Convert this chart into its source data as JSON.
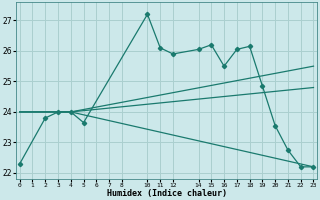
{
  "xlabel": "Humidex (Indice chaleur)",
  "background_color": "#cce8ea",
  "grid_color": "#aacfcf",
  "line_color": "#1a7a6e",
  "ylim": [
    21.8,
    27.6
  ],
  "xlim": [
    -0.3,
    23.3
  ],
  "yticks": [
    22,
    23,
    24,
    25,
    26,
    27
  ],
  "xtick_positions": [
    0,
    1,
    2,
    3,
    4,
    5,
    6,
    7,
    8,
    10,
    11,
    12,
    14,
    15,
    16,
    17,
    18,
    19,
    20,
    21,
    22,
    23
  ],
  "xtick_labels": [
    "0",
    "1",
    "2",
    "3",
    "4",
    "5",
    "6",
    "7",
    "8",
    "10",
    "11",
    "12",
    "14",
    "15",
    "16",
    "17",
    "18",
    "19",
    "20",
    "21",
    "22",
    "23"
  ],
  "lines": [
    {
      "x": [
        0,
        2,
        3,
        4,
        5,
        10,
        11,
        12,
        14,
        15,
        16,
        17,
        18,
        19,
        20,
        21,
        22,
        23
      ],
      "y": [
        22.3,
        23.8,
        24.0,
        24.0,
        23.65,
        27.2,
        26.1,
        25.9,
        26.05,
        26.2,
        25.5,
        26.05,
        26.15,
        24.85,
        23.55,
        22.75,
        22.2,
        22.2
      ],
      "has_markers": true
    },
    {
      "x": [
        0,
        4,
        23
      ],
      "y": [
        24.0,
        24.0,
        25.5
      ],
      "has_markers": false
    },
    {
      "x": [
        0,
        4,
        23
      ],
      "y": [
        24.0,
        24.0,
        24.8
      ],
      "has_markers": false
    },
    {
      "x": [
        0,
        4,
        23
      ],
      "y": [
        24.0,
        24.0,
        22.2
      ],
      "has_markers": false
    }
  ]
}
